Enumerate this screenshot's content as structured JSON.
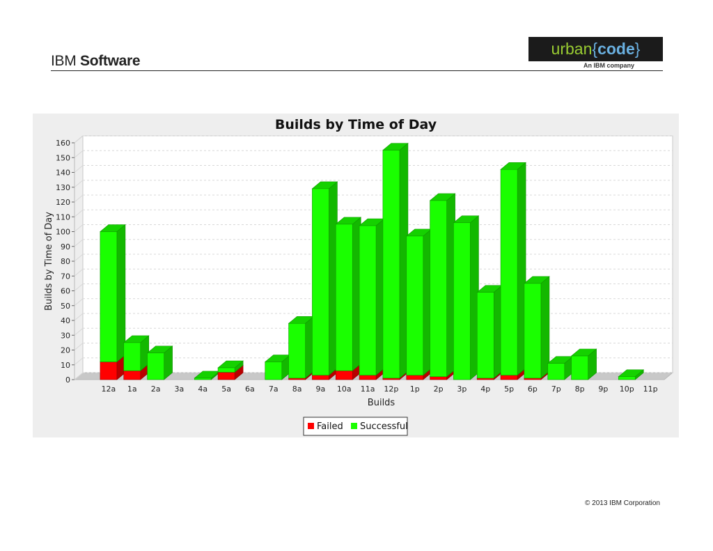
{
  "header": {
    "brand_ibm": "IBM",
    "brand_software": "Software",
    "logo_urban": "urban",
    "logo_open_brace": "{",
    "logo_code": "code",
    "logo_close_brace": "}",
    "logo_tagline": "An IBM company"
  },
  "footer": {
    "copyright": "© 2013 IBM Corporation"
  },
  "colors": {
    "failed": "#ff0000",
    "successful": "#1aff00",
    "panel_background": "#eeeeee"
  },
  "chart_data": {
    "type": "bar",
    "stacked": true,
    "style": "3d",
    "title": "Builds by Time of Day",
    "xlabel": "Builds",
    "ylabel": "Builds by Time of Day",
    "ylim": [
      0,
      160
    ],
    "yticks": [
      0,
      10,
      20,
      30,
      40,
      50,
      60,
      70,
      80,
      90,
      100,
      110,
      120,
      130,
      140,
      150,
      160
    ],
    "grid": true,
    "legend_position": "bottom",
    "categories": [
      "12a",
      "1a",
      "2a",
      "3a",
      "4a",
      "5a",
      "6a",
      "7a",
      "8a",
      "9a",
      "10a",
      "11a",
      "12p",
      "1p",
      "2p",
      "3p",
      "4p",
      "5p",
      "6p",
      "7p",
      "8p",
      "9p",
      "10p",
      "11p"
    ],
    "series": [
      {
        "name": "Failed",
        "color": "#ff0000",
        "values": [
          12,
          6,
          0,
          0,
          0,
          5,
          0,
          0,
          1,
          3,
          6,
          3,
          1,
          3,
          2,
          0,
          1,
          3,
          1,
          0,
          0,
          0,
          0,
          0
        ]
      },
      {
        "name": "Successful",
        "color": "#1aff00",
        "values": [
          88,
          19,
          18,
          0,
          1,
          3,
          0,
          12,
          37,
          126,
          99,
          101,
          154,
          94,
          119,
          106,
          58,
          139,
          64,
          11,
          16,
          0,
          2,
          0
        ]
      }
    ]
  }
}
